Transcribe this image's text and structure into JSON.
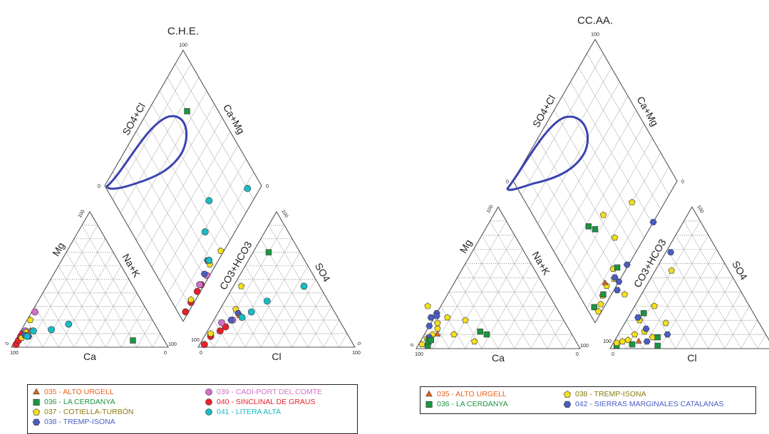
{
  "chart_data": [
    {
      "type": "scatter",
      "subtype": "piper-diagram",
      "title": "C.H.E.",
      "axis_labels": {
        "diamond_upper_left": "SO4+Cl",
        "diamond_upper_right": "Ca+Mg",
        "cation_left": "Mg",
        "cation_right": "Na+K",
        "cation_bottom": "Ca",
        "anion_left": "CO3+HCO3",
        "anion_right": "SO4",
        "anion_bottom": "Cl"
      },
      "tick_labels": {
        "max": "100",
        "min": "0"
      },
      "highlight": "blue ellipse around upper-left cluster in diamond",
      "legend": [
        {
          "code": "035",
          "name": "035 - ALTO URGELL",
          "symbol": "triangle",
          "color": "#e8601c"
        },
        {
          "code": "036",
          "name": "036 - LA CERDANYA",
          "symbol": "square",
          "color": "#1a9641"
        },
        {
          "code": "037",
          "name": "037 - COTIELLA-TURBÓN",
          "symbol": "pentagon",
          "color": "#f4df1c"
        },
        {
          "code": "038",
          "name": "038 - TREMP-ISONA",
          "symbol": "hexagon",
          "color": "#4a5dc4"
        },
        {
          "code": "039",
          "name": "039 - CADÍ-PORT DEL COMTE",
          "symbol": "circle",
          "color": "#d070c8"
        },
        {
          "code": "040",
          "name": "040 - SINCLINAL DE GRAUS",
          "symbol": "circle",
          "color": "#e8202a"
        },
        {
          "code": "041",
          "name": "041 - LITERA ALTA",
          "symbol": "circle",
          "color": "#18bcc4"
        }
      ],
      "samples": [
        {
          "series": "040",
          "cation": {
            "Ca": 96,
            "Mg": 2
          },
          "anion": {
            "Cl": 3,
            "SO4": 2
          }
        },
        {
          "series": "040",
          "cation": {
            "Ca": 93,
            "Mg": 5
          },
          "anion": {
            "Cl": 4,
            "SO4": 8
          }
        },
        {
          "series": "040",
          "cation": {
            "Ca": 90,
            "Mg": 8
          },
          "anion": {
            "Cl": 8,
            "SO4": 12
          }
        },
        {
          "series": "040",
          "cation": {
            "Ca": 88,
            "Mg": 10
          },
          "anion": {
            "Cl": 10,
            "SO4": 15
          }
        },
        {
          "series": "039",
          "cation": {
            "Ca": 85,
            "Mg": 12
          },
          "anion": {
            "Cl": 6,
            "SO4": 18
          }
        },
        {
          "series": "039",
          "cation": {
            "Ca": 72,
            "Mg": 26
          },
          "anion": {
            "Cl": 12,
            "SO4": 20
          }
        },
        {
          "series": "037",
          "cation": {
            "Ca": 90,
            "Mg": 7
          },
          "anion": {
            "Cl": 3,
            "SO4": 10
          }
        },
        {
          "series": "037",
          "cation": {
            "Ca": 78,
            "Mg": 20
          },
          "anion": {
            "Cl": 5,
            "SO4": 45
          }
        },
        {
          "series": "037",
          "cation": {
            "Ca": 85,
            "Mg": 11
          },
          "anion": {
            "Cl": 10,
            "SO4": 28
          }
        },
        {
          "series": "038",
          "cation": {
            "Ca": 85,
            "Mg": 8
          },
          "anion": {
            "Cl": 13,
            "SO4": 25
          }
        },
        {
          "series": "038",
          "cation": {
            "Ca": 87,
            "Mg": 9
          },
          "anion": {
            "Cl": 11,
            "SO4": 20
          }
        },
        {
          "series": "035",
          "cation": {
            "Ca": 82,
            "Mg": 12
          },
          "anion": {
            "Cl": 15,
            "SO4": 23
          }
        },
        {
          "series": "041",
          "cation": {
            "Ca": 86,
            "Mg": 8
          },
          "anion": {
            "Cl": 17,
            "SO4": 22
          }
        },
        {
          "series": "041",
          "cation": {
            "Ca": 68,
            "Mg": 13
          },
          "anion": {
            "Cl": 21,
            "SO4": 26
          }
        },
        {
          "series": "041",
          "cation": {
            "Ca": 55,
            "Mg": 17
          },
          "anion": {
            "Cl": 27,
            "SO4": 34
          }
        },
        {
          "series": "041",
          "cation": {
            "Ca": 80,
            "Mg": 12
          },
          "anion": {
            "Cl": 45,
            "SO4": 45
          }
        },
        {
          "series": "036",
          "cation": {
            "Ca": 20,
            "Mg": 5
          },
          "anion": {
            "Cl": 10,
            "SO4": 70
          }
        }
      ]
    },
    {
      "type": "scatter",
      "subtype": "piper-diagram",
      "title": "CC.AA.",
      "axis_labels": {
        "diamond_upper_left": "SO4+Cl",
        "diamond_upper_right": "Ca+Mg",
        "cation_left": "Mg",
        "cation_right": "Na+K",
        "cation_bottom": "Ca",
        "anion_left": "CO3+HCO3",
        "anion_right": "SO4",
        "anion_bottom": "Cl"
      },
      "tick_labels": {
        "max": "100",
        "min": "0"
      },
      "highlight": "blue ellipse around upper-left cluster in diamond",
      "legend": [
        {
          "code": "035",
          "name": "035 - ALTO URGELL",
          "symbol": "triangle",
          "color": "#e8601c"
        },
        {
          "code": "036",
          "name": "036 - LA CERDANYA",
          "symbol": "square",
          "color": "#1a9641"
        },
        {
          "code": "038",
          "name": "038 - TREMP-ISONA",
          "symbol": "pentagon",
          "color": "#f4df1c"
        },
        {
          "code": "042",
          "name": "042 - SIERRAS MARGINALES CATALANAS",
          "symbol": "hexagon",
          "color": "#4a5dc4"
        }
      ],
      "samples": [
        {
          "series": "036",
          "cation": {
            "Ca": 92,
            "Mg": 2
          },
          "anion": {
            "Cl": 3,
            "SO4": 2
          }
        },
        {
          "series": "038",
          "cation": {
            "Ca": 95,
            "Mg": 3
          },
          "anion": {
            "Cl": 2,
            "SO4": 4
          }
        },
        {
          "series": "038",
          "cation": {
            "Ca": 90,
            "Mg": 7
          },
          "anion": {
            "Cl": 5,
            "SO4": 5
          }
        },
        {
          "series": "038",
          "cation": {
            "Ca": 85,
            "Mg": 10
          },
          "anion": {
            "Cl": 8,
            "SO4": 6
          }
        },
        {
          "series": "038",
          "cation": {
            "Ca": 80,
            "Mg": 14
          },
          "anion": {
            "Cl": 10,
            "SO4": 10
          }
        },
        {
          "series": "038",
          "cation": {
            "Ca": 78,
            "Mg": 18
          },
          "anion": {
            "Cl": 15,
            "SO4": 12
          }
        },
        {
          "series": "038",
          "cation": {
            "Ca": 72,
            "Mg": 10
          },
          "anion": {
            "Cl": 12,
            "SO4": 30
          }
        },
        {
          "series": "038",
          "cation": {
            "Ca": 70,
            "Mg": 22
          },
          "anion": {
            "Cl": 22,
            "SO4": 8
          }
        },
        {
          "series": "038",
          "cation": {
            "Ca": 62,
            "Mg": 5
          },
          "anion": {
            "Cl": 25,
            "SO4": 18
          }
        },
        {
          "series": "038",
          "cation": {
            "Ca": 78,
            "Mg": 30
          },
          "anion": {
            "Cl": 8,
            "SO4": 20
          }
        },
        {
          "series": "038",
          "cation": {
            "Ca": 60,
            "Mg": 20
          },
          "anion": {
            "Cl": 10,
            "SO4": 55
          }
        },
        {
          "series": "042",
          "cation": {
            "Ca": 80,
            "Mg": 22
          },
          "anion": {
            "Cl": 20,
            "SO4": 5
          }
        },
        {
          "series": "042",
          "cation": {
            "Ca": 75,
            "Mg": 25
          },
          "anion": {
            "Cl": 15,
            "SO4": 14
          }
        },
        {
          "series": "042",
          "cation": {
            "Ca": 88,
            "Mg": 8
          },
          "anion": {
            "Cl": 6,
            "SO4": 22
          }
        },
        {
          "series": "042",
          "cation": {
            "Ca": 76,
            "Mg": 23
          },
          "anion": {
            "Cl": 30,
            "SO4": 10
          }
        },
        {
          "series": "042",
          "cation": {
            "Ca": 84,
            "Mg": 16
          },
          "anion": {
            "Cl": 3,
            "SO4": 68
          }
        },
        {
          "series": "036",
          "cation": {
            "Ca": 90,
            "Mg": 5
          },
          "anion": {
            "Cl": 12,
            "SO4": 3
          }
        },
        {
          "series": "036",
          "cation": {
            "Ca": 52,
            "Mg": 10
          },
          "anion": {
            "Cl": 28,
            "SO4": 2
          }
        },
        {
          "series": "036",
          "cation": {
            "Ca": 55,
            "Mg": 12
          },
          "anion": {
            "Cl": 8,
            "SO4": 25
          }
        },
        {
          "series": "036",
          "cation": {
            "Ca": 88,
            "Mg": 6
          },
          "anion": {
            "Cl": 25,
            "SO4": 8
          }
        },
        {
          "series": "035",
          "cation": {
            "Ca": 82,
            "Mg": 10
          },
          "anion": {
            "Cl": 15,
            "SO4": 5
          }
        }
      ]
    }
  ]
}
